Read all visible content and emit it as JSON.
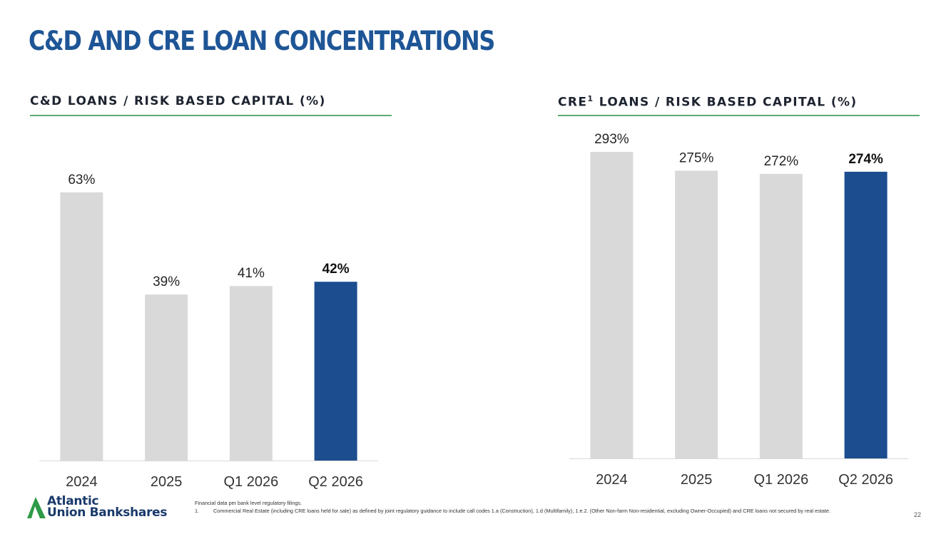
{
  "page": {
    "title": "C&D AND CRE LOAN CONCENTRATIONS",
    "page_number": "22"
  },
  "colors": {
    "title": "#1e5596",
    "accent": "#1b4d8f",
    "bar_default": "#d9d9d9",
    "rule_green": "#5dab72",
    "logo_green": "#2e9b48",
    "logo_navy": "#1a3a6b",
    "axis": "#d9d9d9",
    "label": "#262626",
    "tick": "#333333"
  },
  "logo": {
    "line1": "Atlantic",
    "line2": "Union Bankshares",
    "mark": "triangle-mark-icon"
  },
  "footnotes": {
    "source": "Financial data per bank level regulatory filings.",
    "note1_num": "1.",
    "note1_text": "Commercial Real Estate (including CRE loans held for sale) as defined by joint regulatory guidance to include call codes 1.a (Construction), 1.d (Multifamily), 1.e.2. (Other Non-farm Non-residential, excluding Owner-Occupied) and CRE loans not secured by real estate."
  },
  "chart_data": [
    {
      "type": "bar",
      "title": "C&D LOANS / RISK BASED CAPITAL (%)",
      "title_sup": "",
      "title_rest": "",
      "categories": [
        "2024",
        "2025",
        "Q1 2026",
        "Q2 2026"
      ],
      "values": [
        63,
        39,
        41,
        42
      ],
      "data_labels": [
        "63%",
        "39%",
        "41%",
        "42%"
      ],
      "highlight_index": 3,
      "ylim": [
        0,
        70
      ],
      "grid": false,
      "legend": "none"
    },
    {
      "type": "bar",
      "title": "CRE",
      "title_sup": "1",
      "title_rest": " LOANS / RISK BASED CAPITAL (%)",
      "categories": [
        "2024",
        "2025",
        "Q1 2026",
        "Q2 2026"
      ],
      "values": [
        293,
        275,
        272,
        274
      ],
      "data_labels": [
        "293%",
        "275%",
        "272%",
        "274%"
      ],
      "highlight_index": 3,
      "ylim": [
        0,
        293
      ],
      "grid": false,
      "legend": "none"
    }
  ]
}
